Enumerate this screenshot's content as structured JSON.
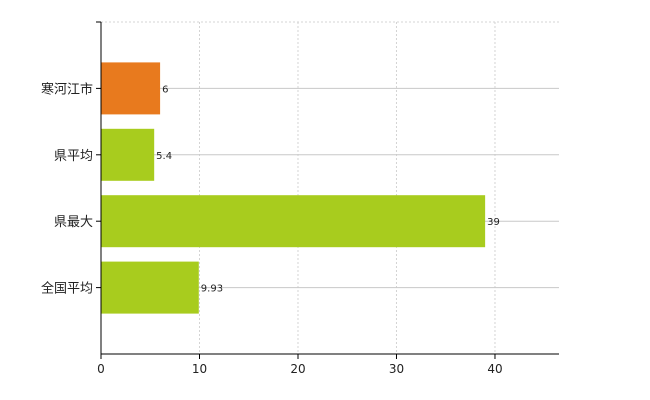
{
  "chart_data": {
    "type": "bar",
    "orientation": "horizontal",
    "categories": [
      "寒河江市",
      "県平均",
      "県最大",
      "全国平均"
    ],
    "values": [
      6,
      5.4,
      39,
      9.93
    ],
    "value_labels": [
      "6",
      "5.4",
      "39",
      "9.93"
    ],
    "colors": [
      "#E87A1E",
      "#A8CC1E",
      "#A8CC1E",
      "#A8CC1E"
    ],
    "xlim": [
      0,
      46.5
    ],
    "x_ticks": [
      0,
      10,
      20,
      30,
      40
    ],
    "x_tick_labels": [
      "0",
      "10",
      "20",
      "30",
      "40"
    ],
    "grid": true,
    "title": "",
    "xlabel": "",
    "ylabel": ""
  }
}
